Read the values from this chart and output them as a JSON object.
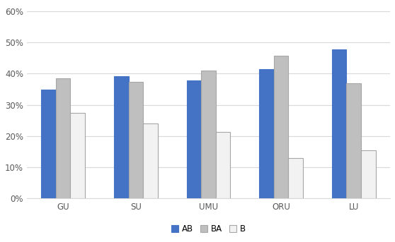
{
  "categories": [
    "GU",
    "SU",
    "UMU",
    "ORU",
    "LU"
  ],
  "series": {
    "AB": [
      0.348,
      0.392,
      0.378,
      0.415,
      0.478
    ],
    "BA": [
      0.385,
      0.373,
      0.41,
      0.458,
      0.368
    ],
    "B": [
      0.273,
      0.24,
      0.213,
      0.13,
      0.155
    ]
  },
  "colors": {
    "AB": "#4472C4",
    "BA": "#BFBFBF",
    "B": "#F2F2F2"
  },
  "edge_colors": {
    "AB": "#4472C4",
    "BA": "#A6A6A6",
    "B": "#A6A6A6"
  },
  "legend_labels": [
    "AB",
    "BA",
    "B"
  ],
  "ylim": [
    0,
    0.62
  ],
  "yticks": [
    0.0,
    0.1,
    0.2,
    0.3,
    0.4,
    0.5,
    0.6
  ],
  "ytick_labels": [
    "0%",
    "10%",
    "20%",
    "30%",
    "40%",
    "50%",
    "60%"
  ],
  "bar_width": 0.2,
  "background_color": "#FFFFFF",
  "grid_color": "#D9D9D9"
}
